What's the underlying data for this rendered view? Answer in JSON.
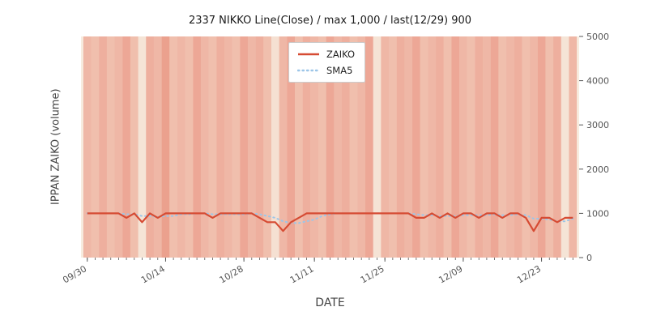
{
  "chart_data": {
    "type": "line",
    "title": "2337 NIKKO Line(Close) / max 1,000 / last(12/29) 900",
    "xlabel": "DATE",
    "ylabel": "IPPAN ZAIKO (volume)",
    "ylim": [
      0,
      5000
    ],
    "yticks": [
      0,
      1000,
      2000,
      3000,
      4000,
      5000
    ],
    "xtick_labels": [
      "09/30",
      "10/14",
      "10/28",
      "11/11",
      "11/25",
      "12/09",
      "12/23"
    ],
    "xtick_indices": [
      0,
      10,
      20,
      29,
      38,
      48,
      58
    ],
    "legend": [
      "ZAIKO",
      "SMA5"
    ],
    "grid": false,
    "legend_position": "upper center",
    "dates": [
      "09/30",
      "10/01",
      "10/02",
      "10/05",
      "10/06",
      "10/07",
      "10/08",
      "10/09",
      "10/12",
      "10/13",
      "10/14",
      "10/15",
      "10/16",
      "10/19",
      "10/20",
      "10/21",
      "10/22",
      "10/23",
      "10/26",
      "10/27",
      "10/28",
      "10/29",
      "10/30",
      "11/02",
      "11/04",
      "11/05",
      "11/06",
      "11/09",
      "11/10",
      "11/11",
      "11/12",
      "11/13",
      "11/16",
      "11/17",
      "11/18",
      "11/19",
      "11/20",
      "11/24",
      "11/25",
      "11/26",
      "11/27",
      "11/30",
      "12/01",
      "12/02",
      "12/03",
      "12/04",
      "12/07",
      "12/08",
      "12/09",
      "12/10",
      "12/11",
      "12/14",
      "12/15",
      "12/16",
      "12/17",
      "12/18",
      "12/21",
      "12/22",
      "12/23",
      "12/24",
      "12/25",
      "12/28",
      "12/29"
    ],
    "series": [
      {
        "name": "ZAIKO",
        "style": "solid",
        "values": [
          1000,
          1000,
          1000,
          1000,
          1000,
          900,
          1000,
          800,
          1000,
          900,
          1000,
          1000,
          1000,
          1000,
          1000,
          1000,
          900,
          1000,
          1000,
          1000,
          1000,
          1000,
          900,
          800,
          800,
          600,
          800,
          900,
          1000,
          1000,
          1000,
          1000,
          1000,
          1000,
          1000,
          1000,
          1000,
          1000,
          1000,
          1000,
          1000,
          1000,
          900,
          900,
          1000,
          900,
          1000,
          900,
          1000,
          1000,
          900,
          1000,
          1000,
          900,
          1000,
          1000,
          900,
          600,
          900,
          900,
          800,
          900,
          900
        ]
      },
      {
        "name": "SMA5",
        "style": "dotted",
        "derived_from": "ZAIKO",
        "window": 5
      }
    ],
    "background_stripe_alpha": [
      0.35,
      0.3,
      0.4,
      0.3,
      0.35,
      0.45,
      0.3,
      0.05,
      0.4,
      0.35,
      0.5,
      0.3,
      0.35,
      0.3,
      0.45,
      0.35,
      0.3,
      0.4,
      0.35,
      0.3,
      0.45,
      0.35,
      0.4,
      0.3,
      0.08,
      0.35,
      0.45,
      0.3,
      0.4,
      0.35,
      0.3,
      0.45,
      0.35,
      0.4,
      0.3,
      0.35,
      0.45,
      0.06,
      0.35,
      0.3,
      0.4,
      0.35,
      0.45,
      0.3,
      0.35,
      0.4,
      0.3,
      0.45,
      0.35,
      0.3,
      0.4,
      0.35,
      0.45,
      0.3,
      0.35,
      0.4,
      0.3,
      0.35,
      0.45,
      0.3,
      0.4,
      0.05,
      0.35
    ],
    "colors": {
      "zaiko_line": "#d64b33",
      "sma5_line": "#9dc6e8",
      "stripe": "#e0553d",
      "plot_background": "#f7ecdf",
      "tick_text": "#555555",
      "title_text": "#1a1a1a"
    }
  }
}
